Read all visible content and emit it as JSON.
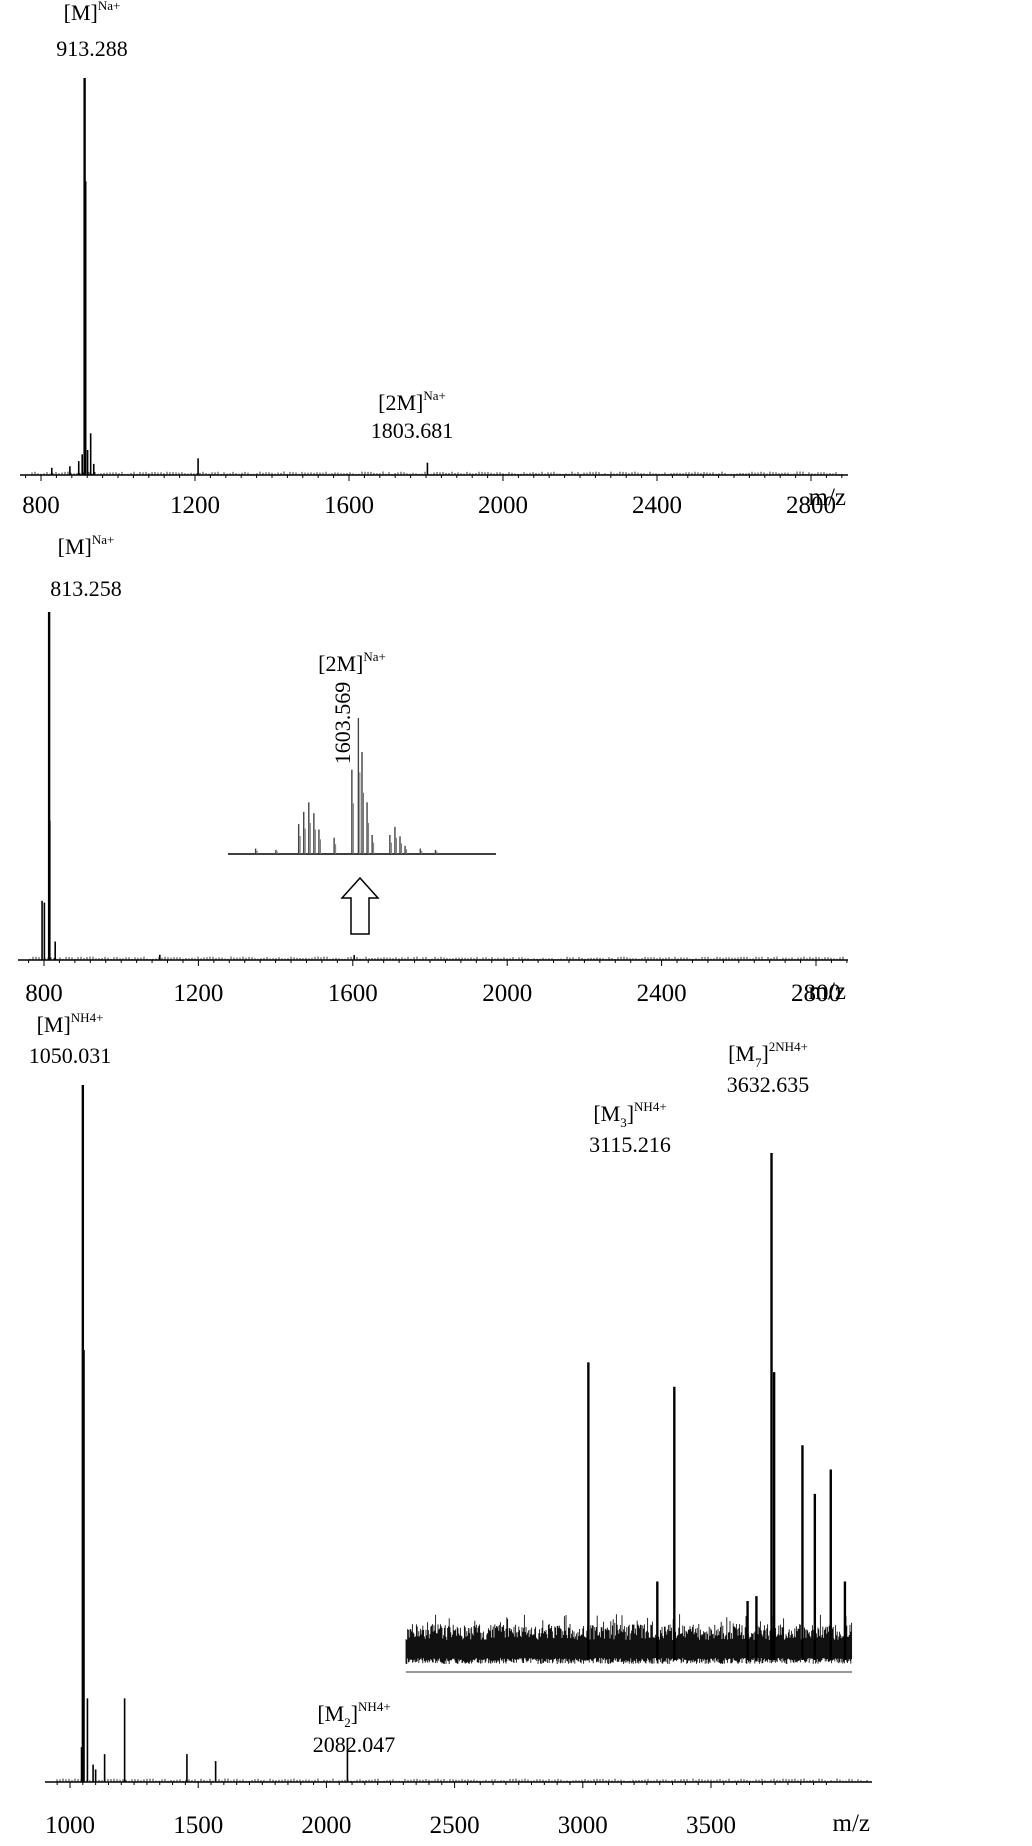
{
  "chart_data": [
    {
      "type": "line",
      "panel": "top",
      "xlabel": "m/z",
      "xlim": [
        700,
        2900
      ],
      "ticks": [
        800,
        1200,
        1600,
        2000,
        2400,
        2800
      ],
      "tick_labels": [
        "800",
        "1200",
        "1600",
        "2000",
        "2400",
        "2800"
      ],
      "ylim": [
        0,
        100
      ],
      "peaks": [
        {
          "x": 828,
          "y": 1.8
        },
        {
          "x": 875,
          "y": 2.2
        },
        {
          "x": 898,
          "y": 3.5
        },
        {
          "x": 907,
          "y": 5.2
        },
        {
          "x": 913.288,
          "y": 100
        },
        {
          "x": 915,
          "y": 74
        },
        {
          "x": 921,
          "y": 6.3
        },
        {
          "x": 929,
          "y": 10.5
        },
        {
          "x": 937,
          "y": 2.8
        },
        {
          "x": 1208,
          "y": 4.2
        },
        {
          "x": 1803.681,
          "y": 3.1
        }
      ],
      "annotations": [
        {
          "ion": "[M]",
          "charge": "Na+",
          "mz": "913.288"
        },
        {
          "ion": "[2M]",
          "charge": "Na+",
          "mz": "1803.681"
        }
      ]
    },
    {
      "type": "line",
      "panel": "middle",
      "xlabel": "m/z",
      "xlim": [
        650,
        2920
      ],
      "ticks": [
        800,
        1200,
        1600,
        2000,
        2400,
        2800
      ],
      "tick_labels": [
        "800",
        "1200",
        "1600",
        "2000",
        "2400",
        "2800"
      ],
      "ylim": [
        0,
        100
      ],
      "peaks": [
        {
          "x": 795,
          "y": 17
        },
        {
          "x": 801,
          "y": 16.5
        },
        {
          "x": 813.258,
          "y": 100
        },
        {
          "x": 815,
          "y": 40
        },
        {
          "x": 829,
          "y": 5.3
        },
        {
          "x": 1100,
          "y": 1.5
        },
        {
          "x": 1603.569,
          "y": 1.4
        }
      ],
      "annotations": [
        {
          "ion": "[M]",
          "charge": "Na+",
          "mz": "813.258"
        }
      ],
      "inset": {
        "note": "zoom of the [2M] region",
        "xlim": [
          1560,
          1650
        ],
        "annotation": {
          "ion": "[2M]",
          "charge": "Na+",
          "mz": "1603.569"
        },
        "peaks": [
          {
            "x": 1563,
            "y": 4
          },
          {
            "x": 1571,
            "y": 3
          },
          {
            "x": 1580,
            "y": 22
          },
          {
            "x": 1582,
            "y": 31
          },
          {
            "x": 1584,
            "y": 38
          },
          {
            "x": 1586,
            "y": 30
          },
          {
            "x": 1588,
            "y": 18
          },
          {
            "x": 1594,
            "y": 12
          },
          {
            "x": 1601,
            "y": 62
          },
          {
            "x": 1603.569,
            "y": 100
          },
          {
            "x": 1605,
            "y": 75
          },
          {
            "x": 1607,
            "y": 38
          },
          {
            "x": 1609,
            "y": 14
          },
          {
            "x": 1616,
            "y": 14
          },
          {
            "x": 1618,
            "y": 20
          },
          {
            "x": 1620,
            "y": 13
          },
          {
            "x": 1622,
            "y": 6
          },
          {
            "x": 1628,
            "y": 4
          },
          {
            "x": 1634,
            "y": 3
          }
        ]
      }
    },
    {
      "type": "line",
      "panel": "bottom",
      "xlabel": "m/z",
      "xlim": [
        950,
        3950
      ],
      "ticks": [
        1000,
        1500,
        2000,
        2500,
        3000,
        3500
      ],
      "tick_labels": [
        "1000",
        "1500",
        "2000",
        "2500",
        "3000",
        "3500"
      ],
      "ylim": [
        0,
        100
      ],
      "peaks": [
        {
          "x": 1045,
          "y": 5
        },
        {
          "x": 1050.031,
          "y": 100
        },
        {
          "x": 1053,
          "y": 62
        },
        {
          "x": 1068,
          "y": 12
        },
        {
          "x": 1090,
          "y": 2.5
        },
        {
          "x": 1100,
          "y": 1.8
        },
        {
          "x": 1135,
          "y": 4
        },
        {
          "x": 1213,
          "y": 12
        },
        {
          "x": 1456,
          "y": 4
        },
        {
          "x": 1568,
          "y": 3
        },
        {
          "x": 2082.047,
          "y": 6.3
        }
      ],
      "annotations": [
        {
          "ion": "[M]",
          "sub": "",
          "charge": "NH4+",
          "mz": "1050.031"
        },
        {
          "ion": "[M",
          "sub": "2",
          "charge": "NH4+",
          "mz": "2082.047"
        }
      ],
      "inset": {
        "note": "high-mass region, noisy baseline",
        "xlim": [
          2600,
          3860
        ],
        "annotations": [
          {
            "ion": "[M",
            "sub": "3",
            "charge": "NH4+",
            "mz": "3115.216"
          },
          {
            "ion": "[M",
            "sub": "7",
            "charge": "2NH4+",
            "mz": "3632.635"
          }
        ],
        "peaks": [
          {
            "x": 3115.216,
            "y": 57
          },
          {
            "x": 3310,
            "y": 12
          },
          {
            "x": 3358,
            "y": 52
          },
          {
            "x": 3565,
            "y": 8
          },
          {
            "x": 3590,
            "y": 9
          },
          {
            "x": 3632.635,
            "y": 100
          },
          {
            "x": 3640,
            "y": 55
          },
          {
            "x": 3720,
            "y": 40
          },
          {
            "x": 3755,
            "y": 30
          },
          {
            "x": 3800,
            "y": 35
          },
          {
            "x": 3840,
            "y": 12
          }
        ]
      }
    }
  ]
}
